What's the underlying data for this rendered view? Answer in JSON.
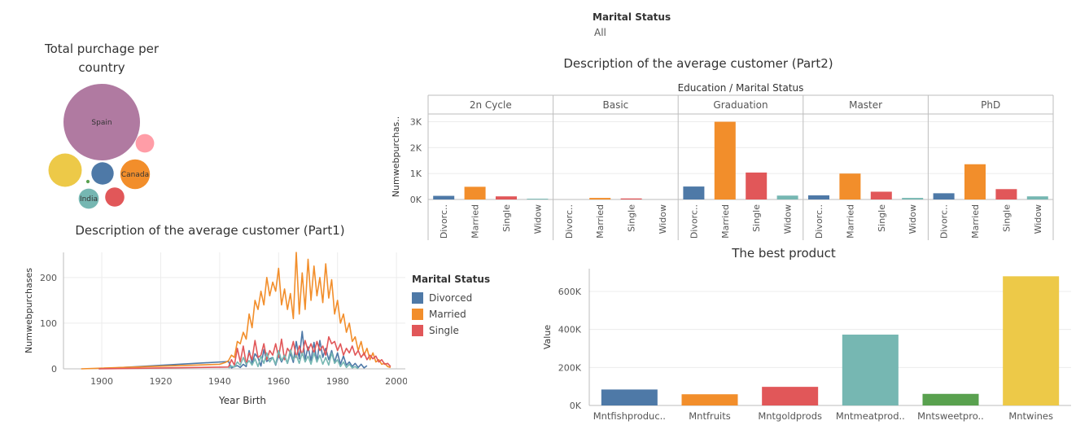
{
  "filter": {
    "title": "Marital Status",
    "value": "All"
  },
  "colors": {
    "Divorced": "#4e79a7",
    "Married": "#f28e2b",
    "Single": "#e15759",
    "Widow": "#76b7b2",
    "grid": "#ececec",
    "axis": "#bdbdbd"
  },
  "chart_data": [
    {
      "id": "bubble",
      "type": "bubble",
      "title": "Total purchage per country",
      "bubbles": [
        {
          "label": "Spain",
          "value": 100,
          "color": "#b07aa1"
        },
        {
          "label": "",
          "value": 19,
          "color": "#edc948"
        },
        {
          "label": "Canada",
          "value": 15,
          "color": "#f28e2b"
        },
        {
          "label": "",
          "value": 8.5,
          "color": "#4e79a7"
        },
        {
          "label": "India",
          "value": 6.9,
          "color": "#76b7b2"
        },
        {
          "label": "",
          "value": 6.3,
          "color": "#e15759"
        },
        {
          "label": "",
          "value": 5.9,
          "color": "#ff9da7"
        },
        {
          "label": "",
          "value": 0.2,
          "color": "#59a14f"
        }
      ]
    },
    {
      "id": "part2",
      "type": "bar",
      "title": "Description of the average customer (Part2)",
      "header": "Education  /  Marital Status",
      "ylabel": "Numwebpurchas..",
      "ylim": [
        0,
        3300
      ],
      "yticks": [
        {
          "v": 0,
          "label": "0K"
        },
        {
          "v": 1000,
          "label": "1K"
        },
        {
          "v": 2000,
          "label": "2K"
        },
        {
          "v": 3000,
          "label": "3K"
        }
      ],
      "categories": [
        "Divorc..",
        "Married",
        "Single",
        "Widow"
      ],
      "panels": [
        {
          "name": "2n Cycle",
          "values": [
            140,
            490,
            120,
            30
          ]
        },
        {
          "name": "Basic",
          "values": [
            0,
            60,
            40,
            0
          ]
        },
        {
          "name": "Graduation",
          "values": [
            500,
            3000,
            1040,
            150
          ]
        },
        {
          "name": "Master",
          "values": [
            160,
            1000,
            300,
            60
          ]
        },
        {
          "name": "PhD",
          "values": [
            240,
            1360,
            400,
            120
          ]
        }
      ]
    },
    {
      "id": "part1",
      "type": "line",
      "title": "Description of the average customer (Part1)",
      "xlabel": "Year Birth",
      "ylabel": "Numwebpurchases",
      "xlim": [
        1887,
        2003
      ],
      "ylim": [
        0,
        255
      ],
      "xticks": [
        1900,
        1920,
        1940,
        1960,
        1980,
        2000
      ],
      "yticks": [
        0,
        100,
        200
      ],
      "legend_title": "Marital Status",
      "series": [
        {
          "name": "Divorced",
          "color": "#4e79a7",
          "points": [
            [
              1899,
              0
            ],
            [
              1943,
              16
            ],
            [
              1944,
              2
            ],
            [
              1945,
              5
            ],
            [
              1946,
              7
            ],
            [
              1947,
              3
            ],
            [
              1948,
              10
            ],
            [
              1949,
              5
            ],
            [
              1950,
              40
            ],
            [
              1951,
              12
            ],
            [
              1952,
              33
            ],
            [
              1953,
              24
            ],
            [
              1954,
              6
            ],
            [
              1955,
              42
            ],
            [
              1956,
              16
            ],
            [
              1957,
              22
            ],
            [
              1958,
              25
            ],
            [
              1959,
              8
            ],
            [
              1960,
              30
            ],
            [
              1961,
              15
            ],
            [
              1962,
              28
            ],
            [
              1963,
              12
            ],
            [
              1964,
              35
            ],
            [
              1965,
              14
            ],
            [
              1966,
              60
            ],
            [
              1967,
              22
            ],
            [
              1968,
              82
            ],
            [
              1969,
              20
            ],
            [
              1970,
              48
            ],
            [
              1971,
              18
            ],
            [
              1972,
              58
            ],
            [
              1973,
              15
            ],
            [
              1974,
              62
            ],
            [
              1975,
              25
            ],
            [
              1976,
              45
            ],
            [
              1977,
              20
            ],
            [
              1978,
              40
            ],
            [
              1979,
              15
            ],
            [
              1980,
              35
            ],
            [
              1981,
              10
            ],
            [
              1982,
              28
            ],
            [
              1983,
              8
            ],
            [
              1984,
              15
            ],
            [
              1985,
              5
            ],
            [
              1986,
              12
            ],
            [
              1987,
              3
            ],
            [
              1988,
              10
            ],
            [
              1989,
              2
            ],
            [
              1990,
              7
            ]
          ]
        },
        {
          "name": "Married",
          "color": "#f28e2b",
          "points": [
            [
              1893,
              0
            ],
            [
              1940,
              10
            ],
            [
              1941,
              12
            ],
            [
              1942,
              14
            ],
            [
              1943,
              18
            ],
            [
              1944,
              30
            ],
            [
              1945,
              25
            ],
            [
              1946,
              60
            ],
            [
              1947,
              55
            ],
            [
              1948,
              80
            ],
            [
              1949,
              65
            ],
            [
              1950,
              120
            ],
            [
              1951,
              90
            ],
            [
              1952,
              150
            ],
            [
              1953,
              130
            ],
            [
              1954,
              170
            ],
            [
              1955,
              140
            ],
            [
              1956,
              200
            ],
            [
              1957,
              160
            ],
            [
              1958,
              190
            ],
            [
              1959,
              170
            ],
            [
              1960,
              220
            ],
            [
              1961,
              140
            ],
            [
              1962,
              175
            ],
            [
              1963,
              130
            ],
            [
              1964,
              165
            ],
            [
              1965,
              110
            ],
            [
              1966,
              255
            ],
            [
              1967,
              120
            ],
            [
              1968,
              210
            ],
            [
              1969,
              130
            ],
            [
              1970,
              240
            ],
            [
              1971,
              150
            ],
            [
              1972,
              225
            ],
            [
              1973,
              160
            ],
            [
              1974,
              200
            ],
            [
              1975,
              145
            ],
            [
              1976,
              230
            ],
            [
              1977,
              155
            ],
            [
              1978,
              195
            ],
            [
              1979,
              120
            ],
            [
              1980,
              150
            ],
            [
              1981,
              100
            ],
            [
              1982,
              120
            ],
            [
              1983,
              80
            ],
            [
              1984,
              100
            ],
            [
              1985,
              60
            ],
            [
              1986,
              70
            ],
            [
              1987,
              40
            ],
            [
              1988,
              60
            ],
            [
              1989,
              30
            ],
            [
              1990,
              45
            ],
            [
              1991,
              20
            ],
            [
              1992,
              35
            ],
            [
              1993,
              15
            ],
            [
              1994,
              20
            ],
            [
              1995,
              10
            ],
            [
              1996,
              12
            ],
            [
              1997,
              5
            ],
            [
              1998,
              3
            ]
          ]
        },
        {
          "name": "Single",
          "color": "#e15759",
          "points": [
            [
              1899,
              0
            ],
            [
              1943,
              4
            ],
            [
              1944,
              20
            ],
            [
              1945,
              8
            ],
            [
              1946,
              45
            ],
            [
              1947,
              15
            ],
            [
              1948,
              50
            ],
            [
              1949,
              10
            ],
            [
              1950,
              35
            ],
            [
              1951,
              20
            ],
            [
              1952,
              62
            ],
            [
              1953,
              25
            ],
            [
              1954,
              30
            ],
            [
              1955,
              55
            ],
            [
              1956,
              20
            ],
            [
              1957,
              40
            ],
            [
              1958,
              30
            ],
            [
              1959,
              55
            ],
            [
              1960,
              25
            ],
            [
              1961,
              65
            ],
            [
              1962,
              20
            ],
            [
              1963,
              45
            ],
            [
              1964,
              35
            ],
            [
              1965,
              60
            ],
            [
              1966,
              25
            ],
            [
              1967,
              50
            ],
            [
              1968,
              30
            ],
            [
              1969,
              62
            ],
            [
              1970,
              40
            ],
            [
              1971,
              55
            ],
            [
              1972,
              35
            ],
            [
              1973,
              60
            ],
            [
              1974,
              40
            ],
            [
              1975,
              50
            ],
            [
              1976,
              30
            ],
            [
              1977,
              70
            ],
            [
              1978,
              55
            ],
            [
              1979,
              60
            ],
            [
              1980,
              40
            ],
            [
              1981,
              55
            ],
            [
              1982,
              30
            ],
            [
              1983,
              45
            ],
            [
              1984,
              35
            ],
            [
              1985,
              50
            ],
            [
              1986,
              30
            ],
            [
              1987,
              40
            ],
            [
              1988,
              25
            ],
            [
              1989,
              35
            ],
            [
              1990,
              20
            ],
            [
              1991,
              30
            ],
            [
              1992,
              22
            ],
            [
              1993,
              28
            ],
            [
              1994,
              15
            ],
            [
              1995,
              20
            ],
            [
              1996,
              10
            ],
            [
              1997,
              12
            ],
            [
              1998,
              5
            ]
          ]
        },
        {
          "name": "Widow",
          "color": "#76b7b2",
          "points": [
            [
              1943,
              2
            ],
            [
              1944,
              6
            ],
            [
              1945,
              4
            ],
            [
              1946,
              15
            ],
            [
              1947,
              8
            ],
            [
              1948,
              25
            ],
            [
              1949,
              10
            ],
            [
              1950,
              18
            ],
            [
              1951,
              8
            ],
            [
              1952,
              22
            ],
            [
              1953,
              5
            ],
            [
              1954,
              28
            ],
            [
              1955,
              12
            ],
            [
              1956,
              35
            ],
            [
              1957,
              15
            ],
            [
              1958,
              25
            ],
            [
              1959,
              10
            ],
            [
              1960,
              40
            ],
            [
              1961,
              18
            ],
            [
              1962,
              30
            ],
            [
              1963,
              12
            ],
            [
              1964,
              42
            ],
            [
              1965,
              20
            ],
            [
              1966,
              30
            ],
            [
              1967,
              12
            ],
            [
              1968,
              35
            ],
            [
              1969,
              15
            ],
            [
              1970,
              28
            ],
            [
              1971,
              10
            ],
            [
              1972,
              35
            ],
            [
              1973,
              15
            ],
            [
              1974,
              30
            ],
            [
              1975,
              10
            ],
            [
              1976,
              25
            ],
            [
              1977,
              8
            ],
            [
              1978,
              35
            ],
            [
              1979,
              12
            ],
            [
              1980,
              20
            ],
            [
              1981,
              5
            ],
            [
              1982,
              15
            ],
            [
              1983,
              3
            ],
            [
              1984,
              10
            ],
            [
              1985,
              2
            ],
            [
              1986,
              5
            ],
            [
              1987,
              0
            ]
          ]
        }
      ]
    },
    {
      "id": "best",
      "type": "bar",
      "title": "The best product",
      "ylabel": "Value",
      "ylim": [
        0,
        720000
      ],
      "yticks": [
        {
          "v": 0,
          "label": "0K"
        },
        {
          "v": 200000,
          "label": "200K"
        },
        {
          "v": 400000,
          "label": "400K"
        },
        {
          "v": 600000,
          "label": "600K"
        }
      ],
      "categories": [
        "Mntfishproduc..",
        "Mntfruits",
        "Mntgoldprods",
        "Mntmeatprod..",
        "Mntsweetpro..",
        "Mntwines"
      ],
      "values": [
        84000,
        59000,
        98000,
        373000,
        61000,
        680000
      ],
      "colors": [
        "#4e79a7",
        "#f28e2b",
        "#e15759",
        "#76b7b2",
        "#59a14f",
        "#edc948"
      ]
    }
  ]
}
